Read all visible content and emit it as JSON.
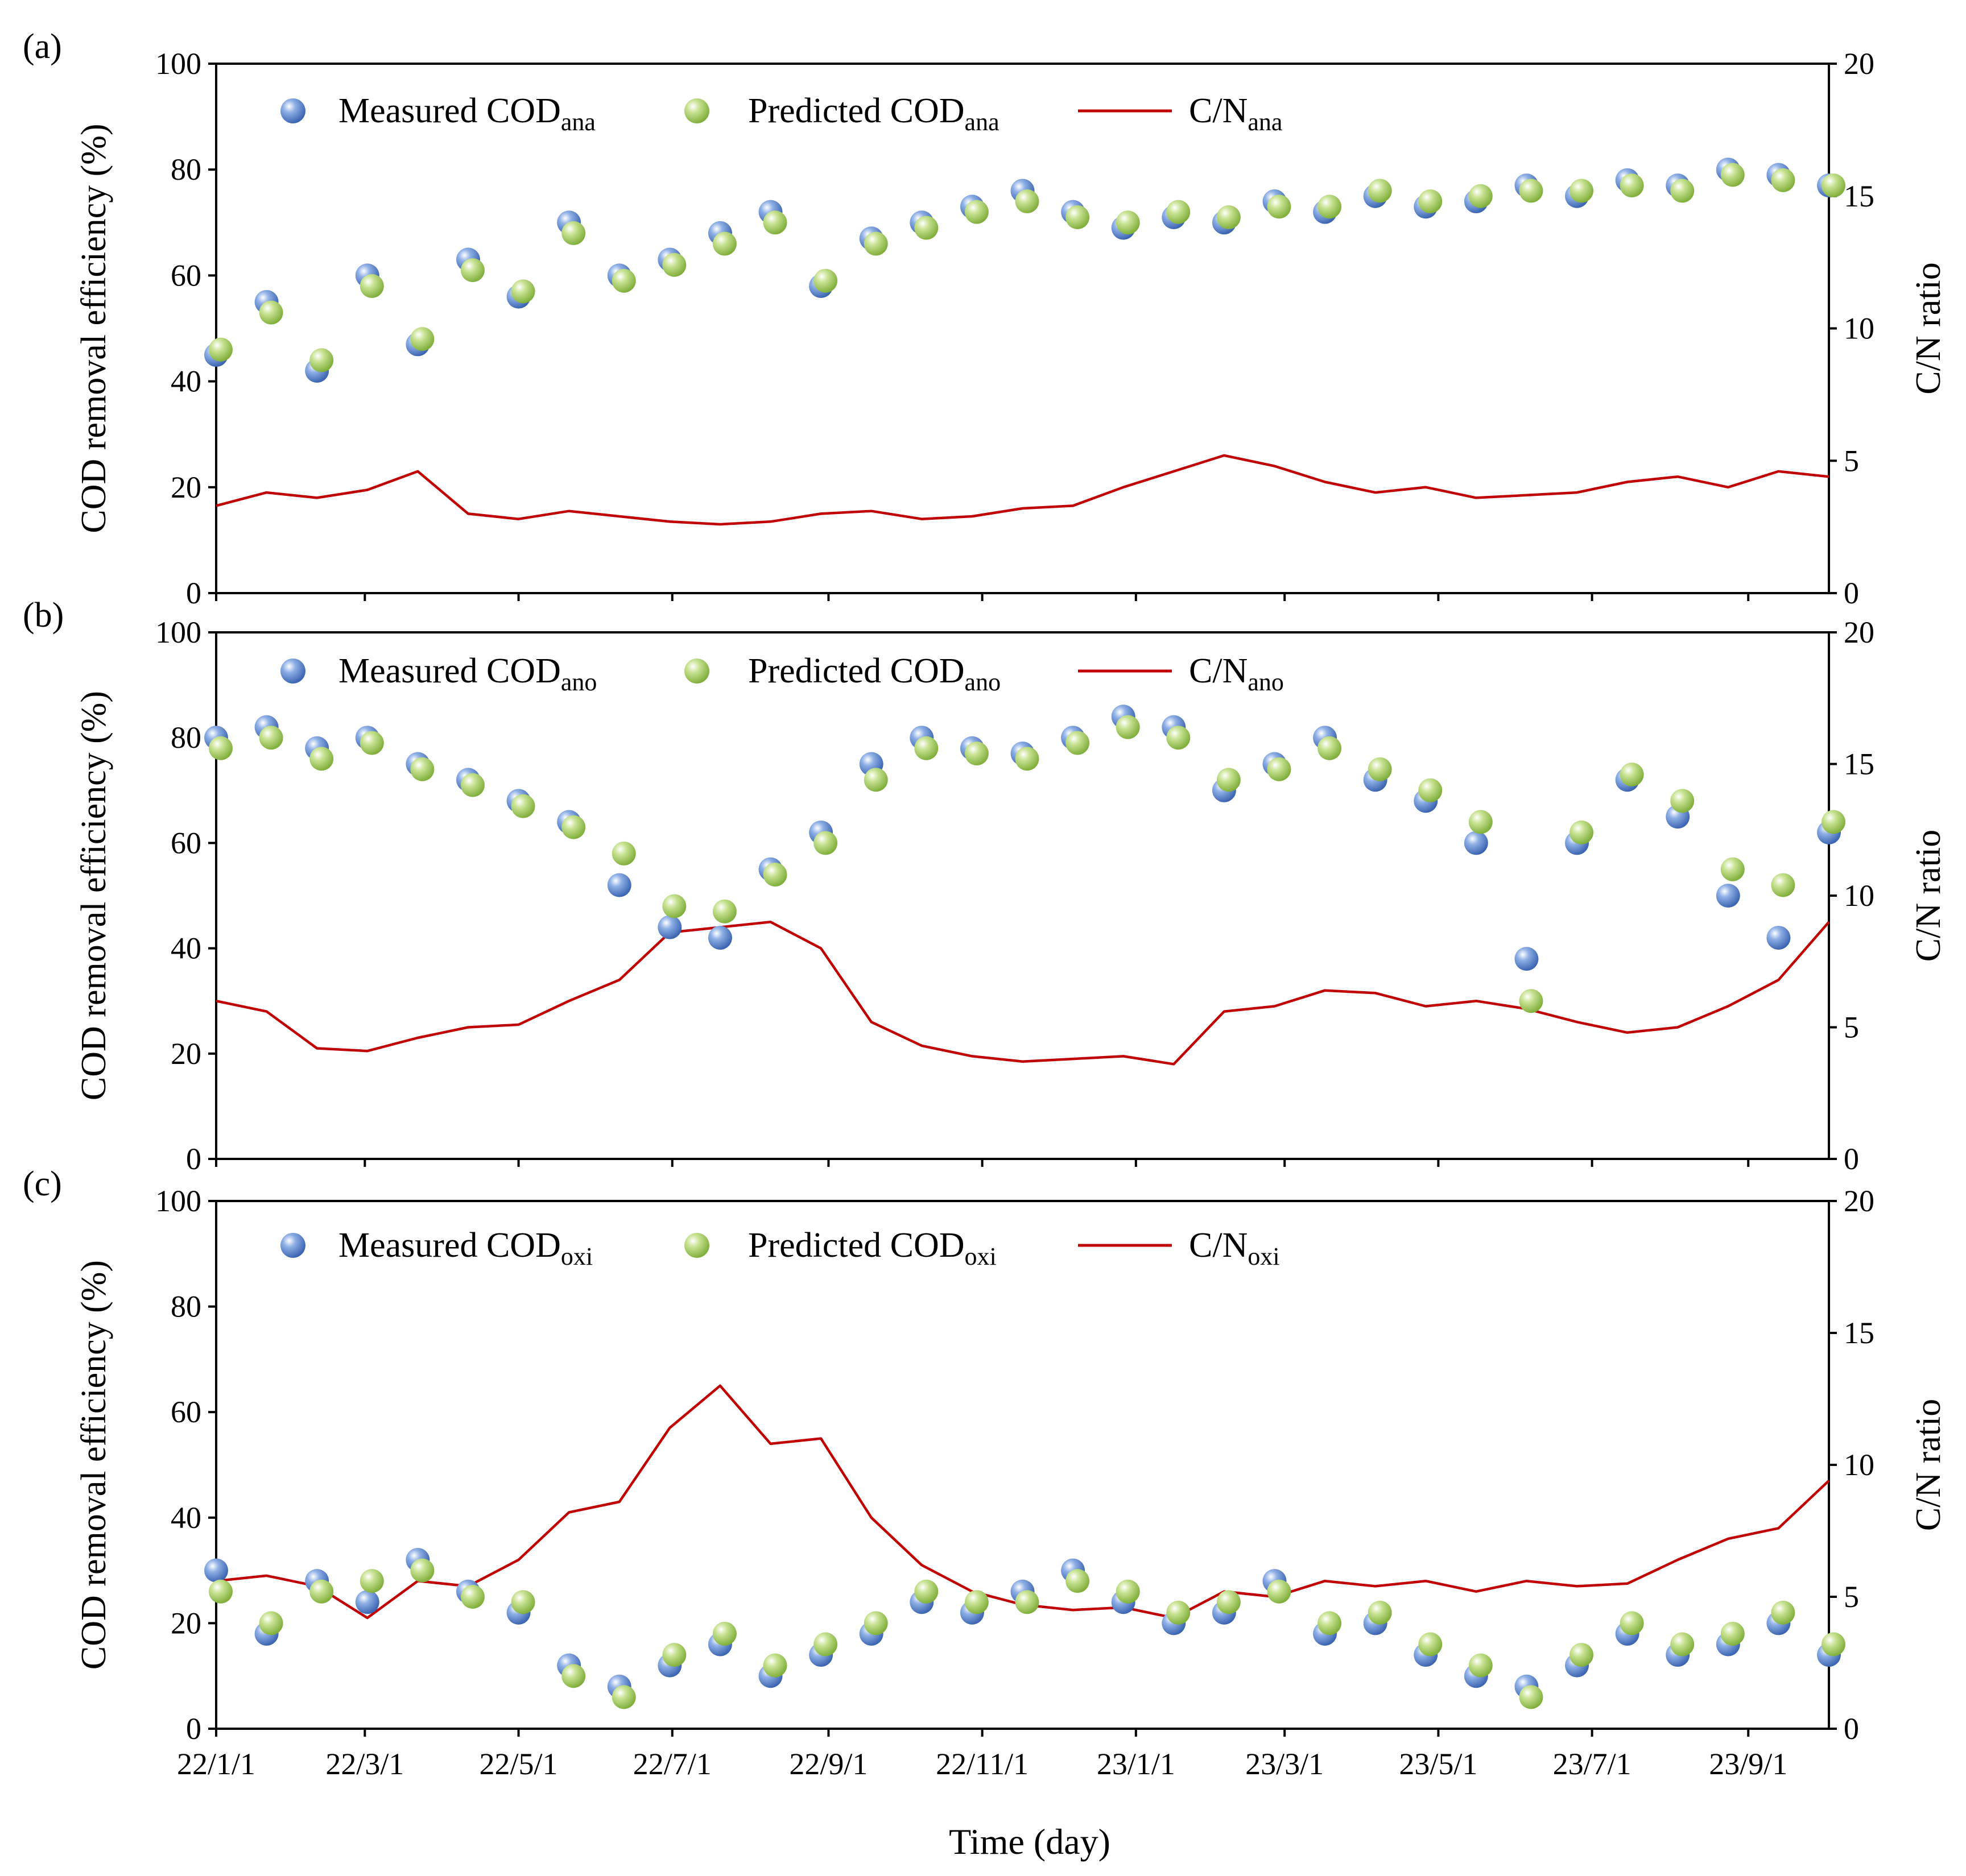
{
  "figure": {
    "x_axis_title": "Time (day)",
    "colors": {
      "measured": "#4a78c2",
      "predicted": "#9cc64e",
      "ratio": "#c00000",
      "axis": "#000000"
    },
    "x_categories": [
      "22/1/1",
      "22/3/1",
      "22/5/1",
      "22/7/1",
      "22/9/1",
      "22/11/1",
      "23/1/1",
      "23/3/1",
      "23/5/1",
      "23/7/1",
      "23/9/1"
    ]
  },
  "chart_data": [
    {
      "type": "scatter+line",
      "panel_label": "(a)",
      "ylabel": "COD removal efficiency (%)",
      "y2label": "C/N ratio",
      "ylim": [
        0,
        100
      ],
      "y2lim": [
        0,
        20
      ],
      "yticks": [
        "0",
        "20",
        "40",
        "60",
        "80",
        "100"
      ],
      "y2ticks": [
        "0",
        "5",
        "10",
        "15",
        "20"
      ],
      "legend": {
        "measured": "Measured COD",
        "predicted": "Predicted COD",
        "ratio": "C/N",
        "sub": "ana"
      },
      "x": [
        0,
        20,
        40,
        60,
        80,
        100,
        120,
        140,
        160,
        180,
        200,
        220,
        240,
        260,
        280,
        300,
        320,
        340,
        360,
        380,
        400,
        420,
        440,
        460,
        480,
        500,
        520,
        540,
        560,
        580,
        600,
        620,
        640
      ],
      "measured": [
        45,
        55,
        42,
        60,
        47,
        63,
        56,
        70,
        60,
        63,
        68,
        72,
        58,
        67,
        70,
        73,
        76,
        72,
        69,
        71,
        70,
        74,
        72,
        75,
        73,
        74,
        77,
        75,
        78,
        77,
        80,
        79,
        77
      ],
      "predicted": [
        46,
        53,
        44,
        58,
        48,
        61,
        57,
        68,
        59,
        62,
        66,
        70,
        59,
        66,
        69,
        72,
        74,
        71,
        70,
        72,
        71,
        73,
        73,
        76,
        74,
        75,
        76,
        76,
        77,
        76,
        79,
        78,
        77
      ],
      "ratio": [
        3.3,
        3.8,
        3.6,
        3.9,
        4.6,
        3.0,
        2.8,
        3.1,
        2.9,
        2.7,
        2.6,
        2.7,
        3.0,
        3.1,
        2.8,
        2.9,
        3.2,
        3.3,
        4.0,
        4.6,
        5.2,
        4.8,
        4.2,
        3.8,
        4.0,
        3.6,
        3.7,
        3.8,
        4.2,
        4.4,
        4.0,
        4.6,
        4.4
      ]
    },
    {
      "type": "scatter+line",
      "panel_label": "(b)",
      "ylabel": "COD removal efficiency (%)",
      "y2label": "C/N ratio",
      "ylim": [
        0,
        100
      ],
      "y2lim": [
        0,
        20
      ],
      "yticks": [
        "0",
        "20",
        "40",
        "60",
        "80",
        "100"
      ],
      "y2ticks": [
        "0",
        "5",
        "10",
        "15",
        "20"
      ],
      "legend": {
        "measured": "Measured COD",
        "predicted": "Predicted COD",
        "ratio": "C/N",
        "sub": "ano"
      },
      "x": [
        0,
        20,
        40,
        60,
        80,
        100,
        120,
        140,
        160,
        180,
        200,
        220,
        240,
        260,
        280,
        300,
        320,
        340,
        360,
        380,
        400,
        420,
        440,
        460,
        480,
        500,
        520,
        540,
        560,
        580,
        600,
        620,
        640
      ],
      "measured": [
        80,
        82,
        78,
        80,
        75,
        72,
        68,
        64,
        52,
        44,
        42,
        55,
        62,
        75,
        80,
        78,
        77,
        80,
        84,
        82,
        70,
        75,
        80,
        72,
        68,
        60,
        38,
        60,
        72,
        65,
        50,
        42,
        62
      ],
      "predicted": [
        78,
        80,
        76,
        79,
        74,
        71,
        67,
        63,
        58,
        48,
        47,
        54,
        60,
        72,
        78,
        77,
        76,
        79,
        82,
        80,
        72,
        74,
        78,
        74,
        70,
        64,
        30,
        62,
        73,
        68,
        55,
        52,
        64
      ],
      "ratio": [
        6.0,
        5.6,
        4.2,
        4.1,
        4.6,
        5.0,
        5.1,
        6.0,
        6.8,
        8.6,
        8.8,
        9.0,
        8.0,
        5.2,
        4.3,
        3.9,
        3.7,
        3.8,
        3.9,
        3.6,
        5.6,
        5.8,
        6.4,
        6.3,
        5.8,
        6.0,
        5.7,
        5.2,
        4.8,
        5.0,
        5.8,
        6.8,
        9.0
      ]
    },
    {
      "type": "scatter+line",
      "panel_label": "(c)",
      "ylabel": "COD removal efficiency (%)",
      "y2label": "C/N ratio",
      "ylim": [
        0,
        100
      ],
      "y2lim": [
        0,
        20
      ],
      "yticks": [
        "0",
        "20",
        "40",
        "60",
        "80",
        "100"
      ],
      "y2ticks": [
        "0",
        "5",
        "10",
        "15",
        "20"
      ],
      "legend": {
        "measured": "Measured COD",
        "predicted": "Predicted COD",
        "ratio": "C/N",
        "sub": "oxi"
      },
      "x": [
        0,
        20,
        40,
        60,
        80,
        100,
        120,
        140,
        160,
        180,
        200,
        220,
        240,
        260,
        280,
        300,
        320,
        340,
        360,
        380,
        400,
        420,
        440,
        460,
        480,
        500,
        520,
        540,
        560,
        580,
        600,
        620,
        640
      ],
      "measured": [
        30,
        18,
        28,
        24,
        32,
        26,
        22,
        12,
        8,
        12,
        16,
        10,
        14,
        18,
        24,
        22,
        26,
        30,
        24,
        20,
        22,
        28,
        18,
        20,
        14,
        10,
        8,
        12,
        18,
        14,
        16,
        20,
        14
      ],
      "predicted": [
        26,
        20,
        26,
        28,
        30,
        25,
        24,
        10,
        6,
        14,
        18,
        12,
        16,
        20,
        26,
        24,
        24,
        28,
        26,
        22,
        24,
        26,
        20,
        22,
        16,
        12,
        6,
        14,
        20,
        16,
        18,
        22,
        16
      ],
      "ratio": [
        5.6,
        5.8,
        5.4,
        4.2,
        5.6,
        5.4,
        6.4,
        8.2,
        8.6,
        11.4,
        13.0,
        10.8,
        11.0,
        8.0,
        6.2,
        5.2,
        4.7,
        4.5,
        4.6,
        4.2,
        5.2,
        5.0,
        5.6,
        5.4,
        5.6,
        5.2,
        5.6,
        5.4,
        5.5,
        6.4,
        7.2,
        7.6,
        9.4
      ]
    }
  ]
}
